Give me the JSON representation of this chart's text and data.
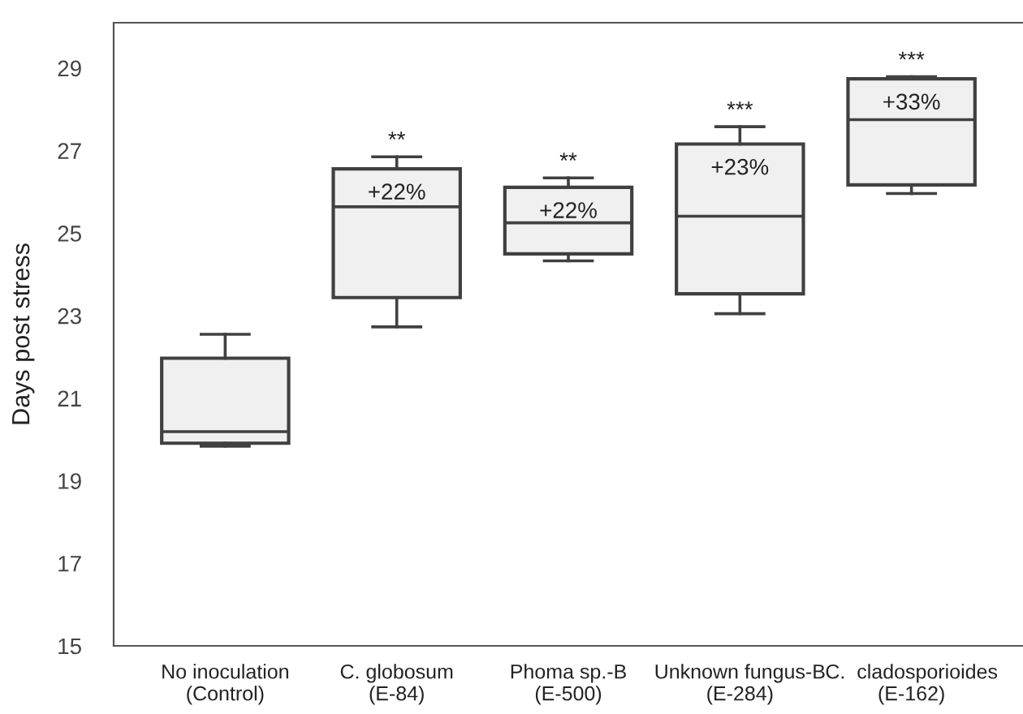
{
  "chart_data": {
    "type": "box",
    "ylabel": "Days post stress",
    "categories": [
      "No inoculation\n(Control)",
      "C. globosum\n(E-84)",
      "Phoma sp.-B\n(E-500)",
      "Unknown fungus-B\n(E-284)",
      "C.  cladosporioides\n(E-162)"
    ],
    "boxes": [
      {
        "low": 19.84,
        "q1": 19.91,
        "median": 20.19,
        "q3": 21.97,
        "high": 22.55
      },
      {
        "low": 22.73,
        "q1": 23.44,
        "median": 25.64,
        "q3": 26.56,
        "high": 26.85
      },
      {
        "low": 24.33,
        "q1": 24.5,
        "median": 25.25,
        "q3": 26.11,
        "high": 26.34
      },
      {
        "low": 23.05,
        "q1": 23.53,
        "median": 25.41,
        "q3": 27.16,
        "high": 27.58
      },
      {
        "low": 25.96,
        "q1": 26.17,
        "median": 27.75,
        "q3": 28.74,
        "high": 28.79
      }
    ],
    "color": "#f0f0f0",
    "ylim": [
      15,
      30.1
    ],
    "yticks": [
      15,
      17,
      19,
      21,
      23,
      25,
      27,
      29
    ],
    "grid": false,
    "annotations": [
      "**",
      "+22%",
      "**",
      "+22%",
      "***",
      "+23%",
      "***",
      "+33%"
    ]
  }
}
